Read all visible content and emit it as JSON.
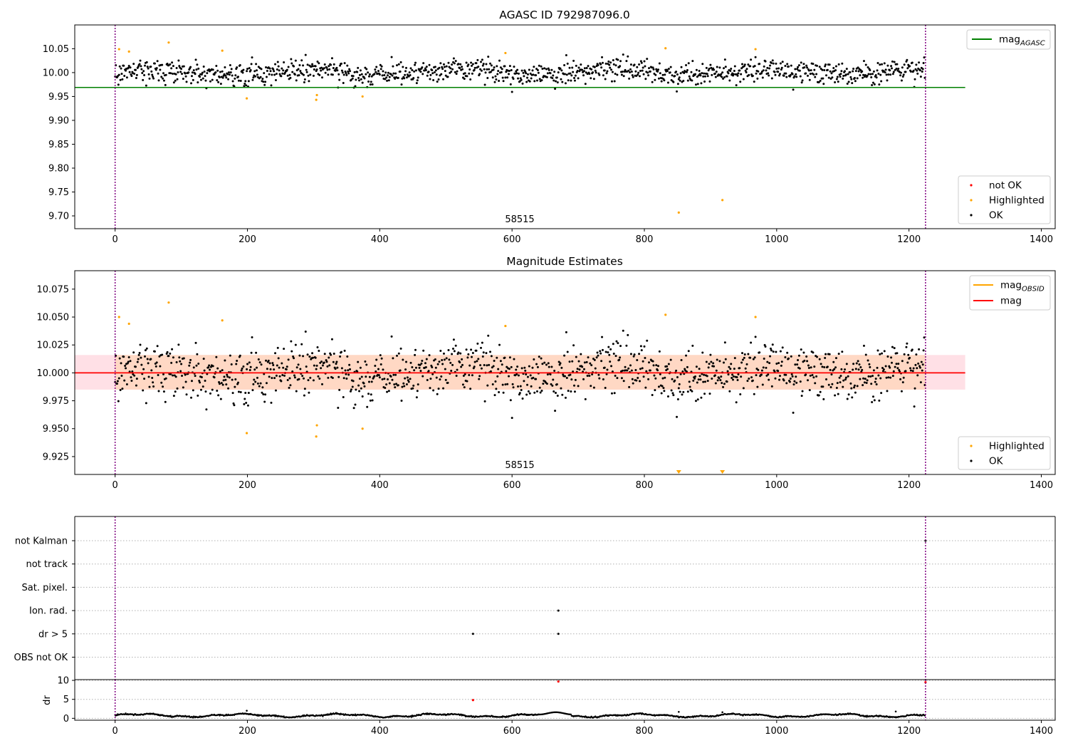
{
  "colors": {
    "ok": "#000000",
    "highlighted": "#ffa500",
    "not_ok": "#ff0000",
    "mag_agasc": "#008000",
    "mag_obsid": "#ffa500",
    "mag": "#ff0000",
    "band_outer": "#ffe0e6",
    "band_inner": "#ffd8c4",
    "vline": "#800080",
    "grid": "#b0b0b0"
  },
  "chart_data": [
    {
      "type": "scatter",
      "title": "AGASC ID 792987096.0",
      "xlim": [
        -61,
        1421
      ],
      "ylim": [
        9.6732,
        10.0998
      ],
      "x_ticks": [
        0,
        200,
        400,
        600,
        800,
        1000,
        1200,
        1400
      ],
      "y_ticks": [
        9.7,
        9.75,
        9.8,
        9.85,
        9.9,
        9.95,
        10.0,
        10.05
      ],
      "y_tick_labels": [
        "9.70",
        "9.75",
        "9.80",
        "9.85",
        "9.90",
        "9.95",
        "10.00",
        "10.05"
      ],
      "annotation": "58515",
      "vlines": [
        0,
        1225
      ],
      "hline": {
        "name": "mag_AGASC",
        "label_main": "mag",
        "label_sub": "AGASC",
        "y": 9.969,
        "x_range": [
          0,
          1285
        ]
      },
      "legend_lines": [
        {
          "label_main": "mag",
          "label_sub": "AGASC",
          "color": "#008000"
        }
      ],
      "legend_points": [
        {
          "label": "not OK",
          "color": "#ff0000"
        },
        {
          "label": "Highlighted",
          "color": "#ffa500"
        },
        {
          "label": "OK",
          "color": "#000000"
        }
      ],
      "ok_series": {
        "name": "OK",
        "count": 1225,
        "x_range": [
          0,
          1225
        ],
        "center": 10.0,
        "sigma": 0.015
      },
      "highlighted_points": [
        {
          "x": 6,
          "y": 10.049
        },
        {
          "x": 21,
          "y": 10.044
        },
        {
          "x": 81,
          "y": 10.063
        },
        {
          "x": 162,
          "y": 10.046
        },
        {
          "x": 199,
          "y": 9.946
        },
        {
          "x": 304,
          "y": 9.943
        },
        {
          "x": 305,
          "y": 9.953
        },
        {
          "x": 374,
          "y": 9.95
        },
        {
          "x": 590,
          "y": 10.041
        },
        {
          "x": 832,
          "y": 10.051
        },
        {
          "x": 852,
          "y": 9.707
        },
        {
          "x": 918,
          "y": 9.733
        },
        {
          "x": 968,
          "y": 10.049
        }
      ]
    },
    {
      "type": "scatter",
      "title": "Magnitude Estimates",
      "xlim": [
        -61,
        1421
      ],
      "ylim": [
        9.909,
        10.0915
      ],
      "x_ticks": [
        0,
        200,
        400,
        600,
        800,
        1000,
        1200,
        1400
      ],
      "y_ticks": [
        9.925,
        9.95,
        9.975,
        10.0,
        10.025,
        10.05,
        10.075
      ],
      "y_tick_labels": [
        "9.925",
        "9.950",
        "9.975",
        "10.000",
        "10.025",
        "10.050",
        "10.075"
      ],
      "annotation": "58515",
      "vlines": [
        0,
        1225
      ],
      "mag_line": {
        "y": 10.0,
        "x_range": [
          -61,
          1285
        ]
      },
      "band_outer": {
        "y_range": [
          9.985,
          10.016
        ],
        "x_range": [
          -61,
          1285
        ]
      },
      "band_inner": {
        "y_range": [
          9.985,
          10.016
        ],
        "x_range": [
          0,
          1225
        ]
      },
      "legend_lines": [
        {
          "label_main": "mag",
          "label_sub": "OBSID",
          "color": "#ffa500"
        },
        {
          "label_main": "mag",
          "label_sub": "",
          "color": "#ff0000"
        }
      ],
      "legend_points": [
        {
          "label": "Highlighted",
          "color": "#ffa500"
        },
        {
          "label": "OK",
          "color": "#000000"
        }
      ],
      "highlighted_points": [
        {
          "x": 6,
          "y": 10.05
        },
        {
          "x": 21,
          "y": 10.044
        },
        {
          "x": 81,
          "y": 10.063
        },
        {
          "x": 162,
          "y": 10.047
        },
        {
          "x": 199,
          "y": 9.946
        },
        {
          "x": 304,
          "y": 9.943
        },
        {
          "x": 305,
          "y": 9.953
        },
        {
          "x": 374,
          "y": 9.95
        },
        {
          "x": 590,
          "y": 10.042
        },
        {
          "x": 832,
          "y": 10.052
        },
        {
          "x": 968,
          "y": 10.05
        }
      ],
      "off_scale_markers": [
        {
          "x": 852
        },
        {
          "x": 918
        }
      ]
    },
    {
      "type": "scatter",
      "title": "",
      "xlim": [
        -61,
        1421
      ],
      "categories": [
        "not Kalman",
        "not track",
        "Sat. pixel.",
        "Ion. rad.",
        "dr > 5",
        "OBS not OK"
      ],
      "flag_points": [
        {
          "category": "Ion. rad.",
          "x": 670
        },
        {
          "category": "dr > 5",
          "x": 541
        },
        {
          "category": "dr > 5",
          "x": 670
        },
        {
          "category": "not Kalman",
          "x": 1225
        }
      ],
      "vlines": [
        0,
        1225
      ]
    },
    {
      "type": "scatter",
      "title": "",
      "ylabel": "dr",
      "xlim": [
        -61,
        1421
      ],
      "ylim": [
        -0.5,
        10.2
      ],
      "x_ticks": [
        0,
        200,
        400,
        600,
        800,
        1000,
        1200,
        1400
      ],
      "y_ticks": [
        0,
        5,
        10
      ],
      "y_tick_labels": [
        "0",
        "5",
        "10"
      ],
      "vlines": [
        0,
        1225
      ],
      "red_points": [
        {
          "x": 541,
          "y": 4.8
        },
        {
          "x": 670,
          "y": 9.7
        },
        {
          "x": 1225,
          "y": 9.5
        }
      ],
      "extra_points": [
        {
          "x": 199,
          "y": 2.0
        },
        {
          "x": 852,
          "y": 1.7
        },
        {
          "x": 918,
          "y": 1.6
        },
        {
          "x": 1180,
          "y": 1.8
        }
      ]
    }
  ]
}
